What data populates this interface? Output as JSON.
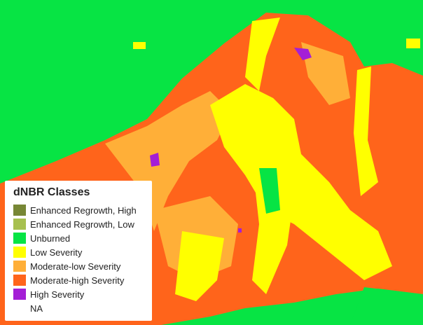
{
  "legend": {
    "title": "dNBR Classes",
    "items": [
      {
        "label": "Enhanced Regrowth, High",
        "color": "#778735"
      },
      {
        "label": "Enhanced Regrowth, Low",
        "color": "#a7c04f"
      },
      {
        "label": "Unburned",
        "color": "#07e444"
      },
      {
        "label": "Low Severity",
        "color": "#ffff00"
      },
      {
        "label": "Moderate-low Severity",
        "color": "#ffaf38"
      },
      {
        "label": "Moderate-high Severity",
        "color": "#ff641b"
      },
      {
        "label": "High Severity",
        "color": "#a41fd6"
      },
      {
        "label": "NA"
      }
    ]
  }
}
